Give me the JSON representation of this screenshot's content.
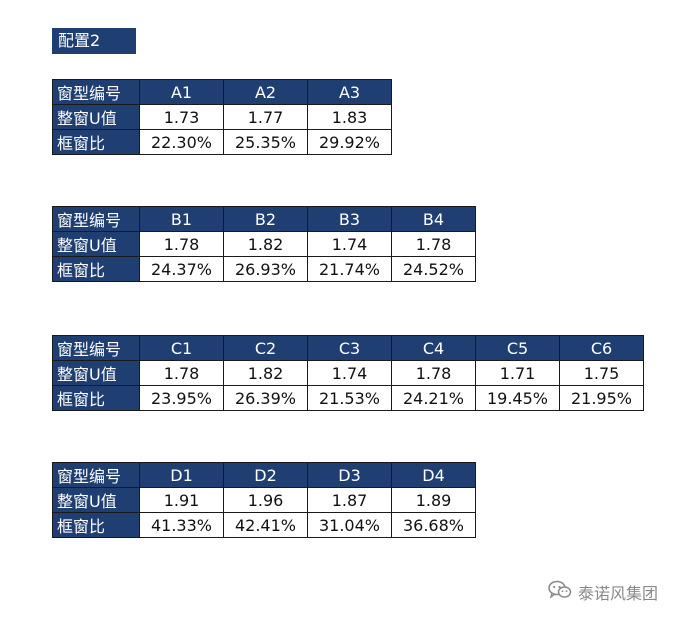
{
  "config_title": "配置2",
  "row_labels": {
    "window_type": "窗型编号",
    "u_value": "整窗U值",
    "frame_ratio": "框窗比"
  },
  "tables": [
    {
      "types": [
        "A1",
        "A2",
        "A3"
      ],
      "u_values": [
        "1.73",
        "1.77",
        "1.83"
      ],
      "frame_ratios": [
        "22.30%",
        "25.35%",
        "29.92%"
      ]
    },
    {
      "types": [
        "B1",
        "B2",
        "B3",
        "B4"
      ],
      "u_values": [
        "1.78",
        "1.82",
        "1.74",
        "1.78"
      ],
      "frame_ratios": [
        "24.37%",
        "26.93%",
        "21.74%",
        "24.52%"
      ]
    },
    {
      "types": [
        "C1",
        "C2",
        "C3",
        "C4",
        "C5",
        "C6"
      ],
      "u_values": [
        "1.78",
        "1.82",
        "1.74",
        "1.78",
        "1.71",
        "1.75"
      ],
      "frame_ratios": [
        "23.95%",
        "26.39%",
        "21.53%",
        "24.21%",
        "19.45%",
        "21.95%"
      ]
    },
    {
      "types": [
        "D1",
        "D2",
        "D3",
        "D4"
      ],
      "u_values": [
        "1.91",
        "1.96",
        "1.87",
        "1.89"
      ],
      "frame_ratios": [
        "41.33%",
        "42.41%",
        "31.04%",
        "36.68%"
      ]
    }
  ],
  "watermark": {
    "icon": "wechat-icon",
    "text": "泰诺风集团"
  }
}
